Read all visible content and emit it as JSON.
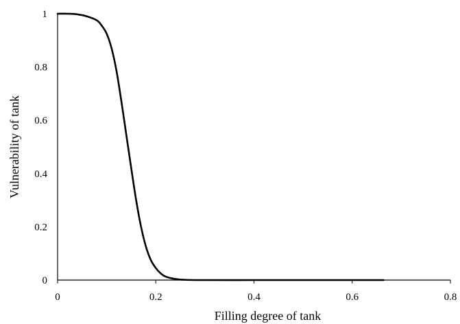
{
  "chart_data": {
    "type": "line",
    "title": "",
    "xlabel": "Filling degree of tank",
    "ylabel": "Vulnerability of tank",
    "xlim": [
      0,
      0.8
    ],
    "ylim": [
      0,
      1
    ],
    "xticks": [
      0,
      0.2,
      0.4,
      0.6,
      0.8
    ],
    "xtick_labels": [
      "0",
      "0.2",
      "0.4",
      "0.6",
      "0.8"
    ],
    "yticks": [
      0,
      0.2,
      0.4,
      0.6,
      0.8,
      1
    ],
    "ytick_labels": [
      "0",
      "0.2",
      "0.4",
      "0.6",
      "0.8",
      "1"
    ],
    "grid": false,
    "legend": "none",
    "line_color": "#000000",
    "series": [
      {
        "x": [
          0,
          0.02,
          0.04,
          0.06,
          0.08,
          0.09,
          0.1,
          0.11,
          0.12,
          0.13,
          0.14,
          0.15,
          0.16,
          0.17,
          0.18,
          0.19,
          0.2,
          0.21,
          0.22,
          0.24,
          0.26,
          0.3,
          0.4,
          0.5,
          0.6,
          0.664
        ],
        "values": [
          1.0,
          1.0,
          0.998,
          0.99,
          0.975,
          0.955,
          0.925,
          0.87,
          0.785,
          0.67,
          0.545,
          0.42,
          0.3,
          0.2,
          0.125,
          0.075,
          0.045,
          0.025,
          0.013,
          0.004,
          0.001,
          0.0,
          0.0,
          0.0,
          0.0,
          0.0
        ]
      }
    ]
  }
}
